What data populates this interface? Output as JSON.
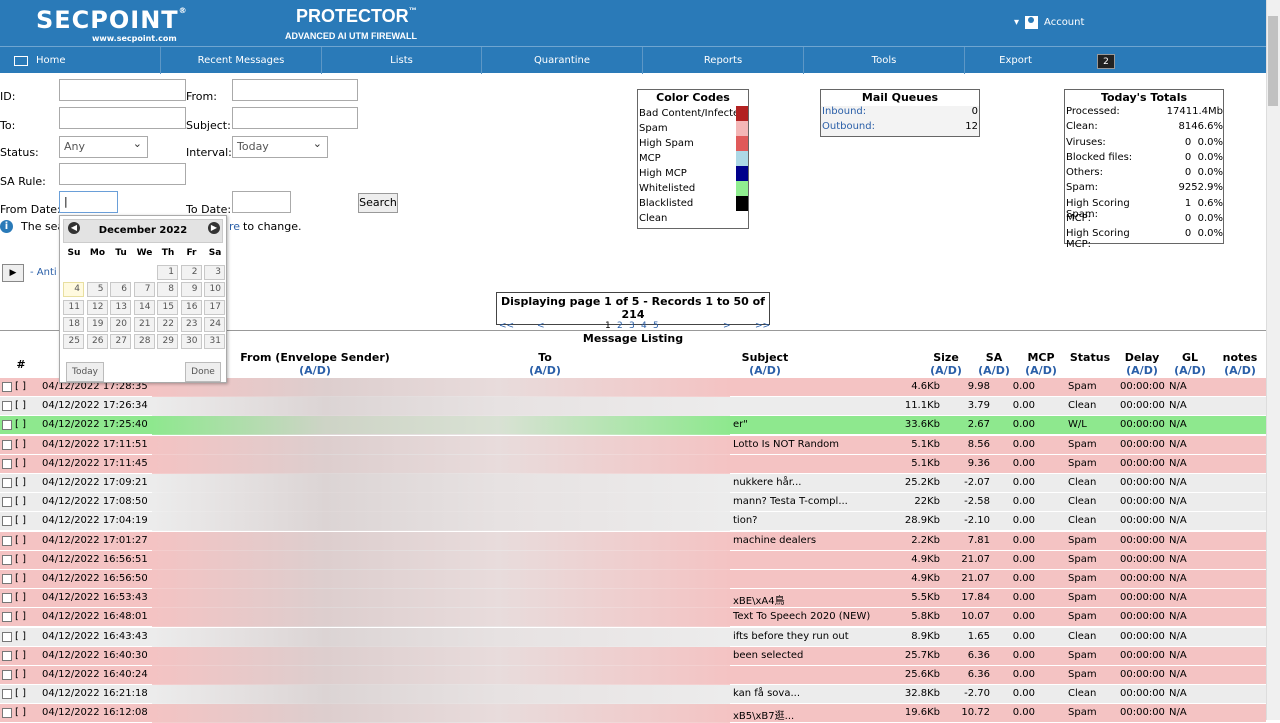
{
  "header": {
    "logo": "SECPOINT",
    "logo_reg": "®",
    "logo_url": "www.secpoint.com",
    "product": "PROTECTOR",
    "product_tm": "™",
    "tagline": "ADVANCED AI UTM FIREWALL",
    "account": "Account",
    "account_caret": "▾"
  },
  "nav": {
    "items": [
      "Home",
      "Recent Messages",
      "Lists",
      "Quarantine",
      "Reports",
      "Tools",
      "Export"
    ],
    "badge": "2"
  },
  "search": {
    "id_label": "ID:",
    "to_label": "To:",
    "status_label": "Status:",
    "status_value": "Any",
    "sa_rule_label": "SA Rule:",
    "from_date_label": "From Date:",
    "from_date_value": "|",
    "from_label": "From:",
    "subject_label": "Subject:",
    "interval_label": "Interval:",
    "interval_value": "Today",
    "to_date_label": "To Date:",
    "search_button": "Search",
    "info_prefix": "The sea",
    "info_link": "re",
    "info_suffix": "to change.",
    "anti_link": "- Anti"
  },
  "calendar": {
    "month": "December 2022",
    "weekdays": [
      "Su",
      "Mo",
      "Tu",
      "We",
      "Th",
      "Fr",
      "Sa"
    ],
    "days": [
      "1",
      "2",
      "3",
      "4",
      "5",
      "6",
      "7",
      "8",
      "9",
      "10",
      "11",
      "12",
      "13",
      "14",
      "15",
      "16",
      "17",
      "18",
      "19",
      "20",
      "21",
      "22",
      "23",
      "24",
      "25",
      "26",
      "27",
      "28",
      "29",
      "30",
      "31"
    ],
    "today_button": "Today",
    "done_button": "Done"
  },
  "color_codes": {
    "title": "Color Codes",
    "items": [
      {
        "label": "Bad Content/Infected",
        "color": "#b22222"
      },
      {
        "label": "Spam",
        "color": "#f4b6b6"
      },
      {
        "label": "High Spam",
        "color": "#e05a5a"
      },
      {
        "label": "MCP",
        "color": "#add8e6"
      },
      {
        "label": "High MCP",
        "color": "#00008b"
      },
      {
        "label": "Whitelisted",
        "color": "#90ee90"
      },
      {
        "label": "Blacklisted",
        "color": "#000000"
      },
      {
        "label": "Clean",
        "color": "#ffffff"
      }
    ]
  },
  "mail_queues": {
    "title": "Mail Queues",
    "items": [
      {
        "label": "Inbound:",
        "value": "0"
      },
      {
        "label": "Outbound:",
        "value": "12"
      }
    ]
  },
  "totals": {
    "title": "Today's Totals",
    "rows": [
      {
        "label": "Processed:",
        "count": "174",
        "extra": "11.4Mb"
      },
      {
        "label": "Clean:",
        "count": "81",
        "extra": "46.6%"
      },
      {
        "label": "Viruses:",
        "count": "0",
        "extra": "0.0%"
      },
      {
        "label": "Blocked files:",
        "count": "0",
        "extra": "0.0%"
      },
      {
        "label": "Others:",
        "count": "0",
        "extra": "0.0%"
      },
      {
        "label": "Spam:",
        "count": "92",
        "extra": "52.9%"
      },
      {
        "label": "High Scoring Spam:",
        "count": "1",
        "extra": "0.6%"
      },
      {
        "label": "MCP:",
        "count": "0",
        "extra": "0.0%"
      },
      {
        "label": "High Scoring MCP:",
        "count": "0",
        "extra": "0.0%"
      }
    ]
  },
  "pager": {
    "text": "Displaying page 1 of 5 - Records 1 to 50 of 214",
    "first": "<<",
    "prev": "<",
    "pages": [
      "1",
      "2",
      "3",
      "4",
      "5"
    ],
    "next": ">",
    "last": ">>"
  },
  "listing": {
    "title": "Message Listing",
    "ad": "(A/D)",
    "headers": {
      "num": "#",
      "from": "From (Envelope Sender)",
      "to": "To",
      "subject": "Subject",
      "size": "Size",
      "sa": "SA",
      "mcp": "MCP",
      "status": "Status",
      "delay": "Delay",
      "gl": "GL",
      "notes": "notes"
    },
    "rows": [
      {
        "bracket": "[ ]",
        "date": "04/12/2022 17:28:35",
        "subject": "",
        "size": "4.6Kb",
        "sa": "9.98",
        "mcp": "0.00",
        "status": "Spam",
        "delay": "00:00:00",
        "gl": "N/A",
        "color": "#f4c3c3"
      },
      {
        "bracket": "[ ]",
        "date": "04/12/2022 17:26:34",
        "subject": "",
        "size": "11.1Kb",
        "sa": "3.79",
        "mcp": "0.00",
        "status": "Clean",
        "delay": "00:00:00",
        "gl": "N/A",
        "color": "#ececec"
      },
      {
        "bracket": "[ ]",
        "date": "04/12/2022 17:25:40",
        "subject": "er\"",
        "size": "33.6Kb",
        "sa": "2.67",
        "mcp": "0.00",
        "status": "W/L",
        "delay": "00:00:00",
        "gl": "N/A",
        "color": "#8ee88e"
      },
      {
        "bracket": "[ ]",
        "date": "04/12/2022 17:11:51",
        "subject": "Lotto Is NOT Random",
        "size": "5.1Kb",
        "sa": "8.56",
        "mcp": "0.00",
        "status": "Spam",
        "delay": "00:00:00",
        "gl": "N/A",
        "color": "#f4c3c3"
      },
      {
        "bracket": "[ ]",
        "date": "04/12/2022 17:11:45",
        "subject": "",
        "size": "5.1Kb",
        "sa": "9.36",
        "mcp": "0.00",
        "status": "Spam",
        "delay": "00:00:00",
        "gl": "N/A",
        "color": "#f4c3c3"
      },
      {
        "bracket": "[ ]",
        "date": "04/12/2022 17:09:21",
        "subject": "nukkere hår...",
        "size": "25.2Kb",
        "sa": "-2.07",
        "mcp": "0.00",
        "status": "Clean",
        "delay": "00:00:00",
        "gl": "N/A",
        "color": "#ececec"
      },
      {
        "bracket": "[ ]",
        "date": "04/12/2022 17:08:50",
        "subject": "mann? Testa T-compl...",
        "size": "22Kb",
        "sa": "-2.58",
        "mcp": "0.00",
        "status": "Clean",
        "delay": "00:00:00",
        "gl": "N/A",
        "color": "#ececec"
      },
      {
        "bracket": "[ ]",
        "date": "04/12/2022 17:04:19",
        "subject": "tion?",
        "size": "28.9Kb",
        "sa": "-2.10",
        "mcp": "0.00",
        "status": "Clean",
        "delay": "00:00:00",
        "gl": "N/A",
        "color": "#ececec"
      },
      {
        "bracket": "[ ]",
        "date": "04/12/2022 17:01:27",
        "subject": "machine dealers",
        "size": "2.2Kb",
        "sa": "7.81",
        "mcp": "0.00",
        "status": "Spam",
        "delay": "00:00:00",
        "gl": "N/A",
        "color": "#f4c3c3"
      },
      {
        "bracket": "[ ]",
        "date": "04/12/2022 16:56:51",
        "subject": "",
        "size": "4.9Kb",
        "sa": "21.07",
        "mcp": "0.00",
        "status": "Spam",
        "delay": "00:00:00",
        "gl": "N/A",
        "color": "#f4c3c3"
      },
      {
        "bracket": "[ ]",
        "date": "04/12/2022 16:56:50",
        "subject": "",
        "size": "4.9Kb",
        "sa": "21.07",
        "mcp": "0.00",
        "status": "Spam",
        "delay": "00:00:00",
        "gl": "N/A",
        "color": "#f4c3c3"
      },
      {
        "bracket": "[ ]",
        "date": "04/12/2022 16:53:43",
        "subject": "xBE\\xA4鳥",
        "size": "5.5Kb",
        "sa": "17.84",
        "mcp": "0.00",
        "status": "Spam",
        "delay": "00:00:00",
        "gl": "N/A",
        "color": "#f4c3c3"
      },
      {
        "bracket": "[ ]",
        "date": "04/12/2022 16:48:01",
        "subject": "Text To Speech 2020 (NEW)",
        "size": "5.8Kb",
        "sa": "10.07",
        "mcp": "0.00",
        "status": "Spam",
        "delay": "00:00:00",
        "gl": "N/A",
        "color": "#f4c3c3"
      },
      {
        "bracket": "[ ]",
        "date": "04/12/2022 16:43:43",
        "subject": "ifts before they run out",
        "size": "8.9Kb",
        "sa": "1.65",
        "mcp": "0.00",
        "status": "Clean",
        "delay": "00:00:00",
        "gl": "N/A",
        "color": "#ececec"
      },
      {
        "bracket": "[ ]",
        "date": "04/12/2022 16:40:30",
        "subject": "been selected",
        "size": "25.7Kb",
        "sa": "6.36",
        "mcp": "0.00",
        "status": "Spam",
        "delay": "00:00:00",
        "gl": "N/A",
        "color": "#f4c3c3"
      },
      {
        "bracket": "[ ]",
        "date": "04/12/2022 16:40:24",
        "subject": "",
        "size": "25.6Kb",
        "sa": "6.36",
        "mcp": "0.00",
        "status": "Spam",
        "delay": "00:00:00",
        "gl": "N/A",
        "color": "#f4c3c3"
      },
      {
        "bracket": "[ ]",
        "date": "04/12/2022 16:21:18",
        "subject": "kan få sova...",
        "size": "32.8Kb",
        "sa": "-2.70",
        "mcp": "0.00",
        "status": "Clean",
        "delay": "00:00:00",
        "gl": "N/A",
        "color": "#ececec"
      },
      {
        "bracket": "[ ]",
        "date": "04/12/2022 16:12:08",
        "subject": "xB5\\xB7逛...",
        "size": "19.6Kb",
        "sa": "10.72",
        "mcp": "0.00",
        "status": "Spam",
        "delay": "00:00:00",
        "gl": "N/A",
        "color": "#f4c3c3"
      }
    ]
  }
}
